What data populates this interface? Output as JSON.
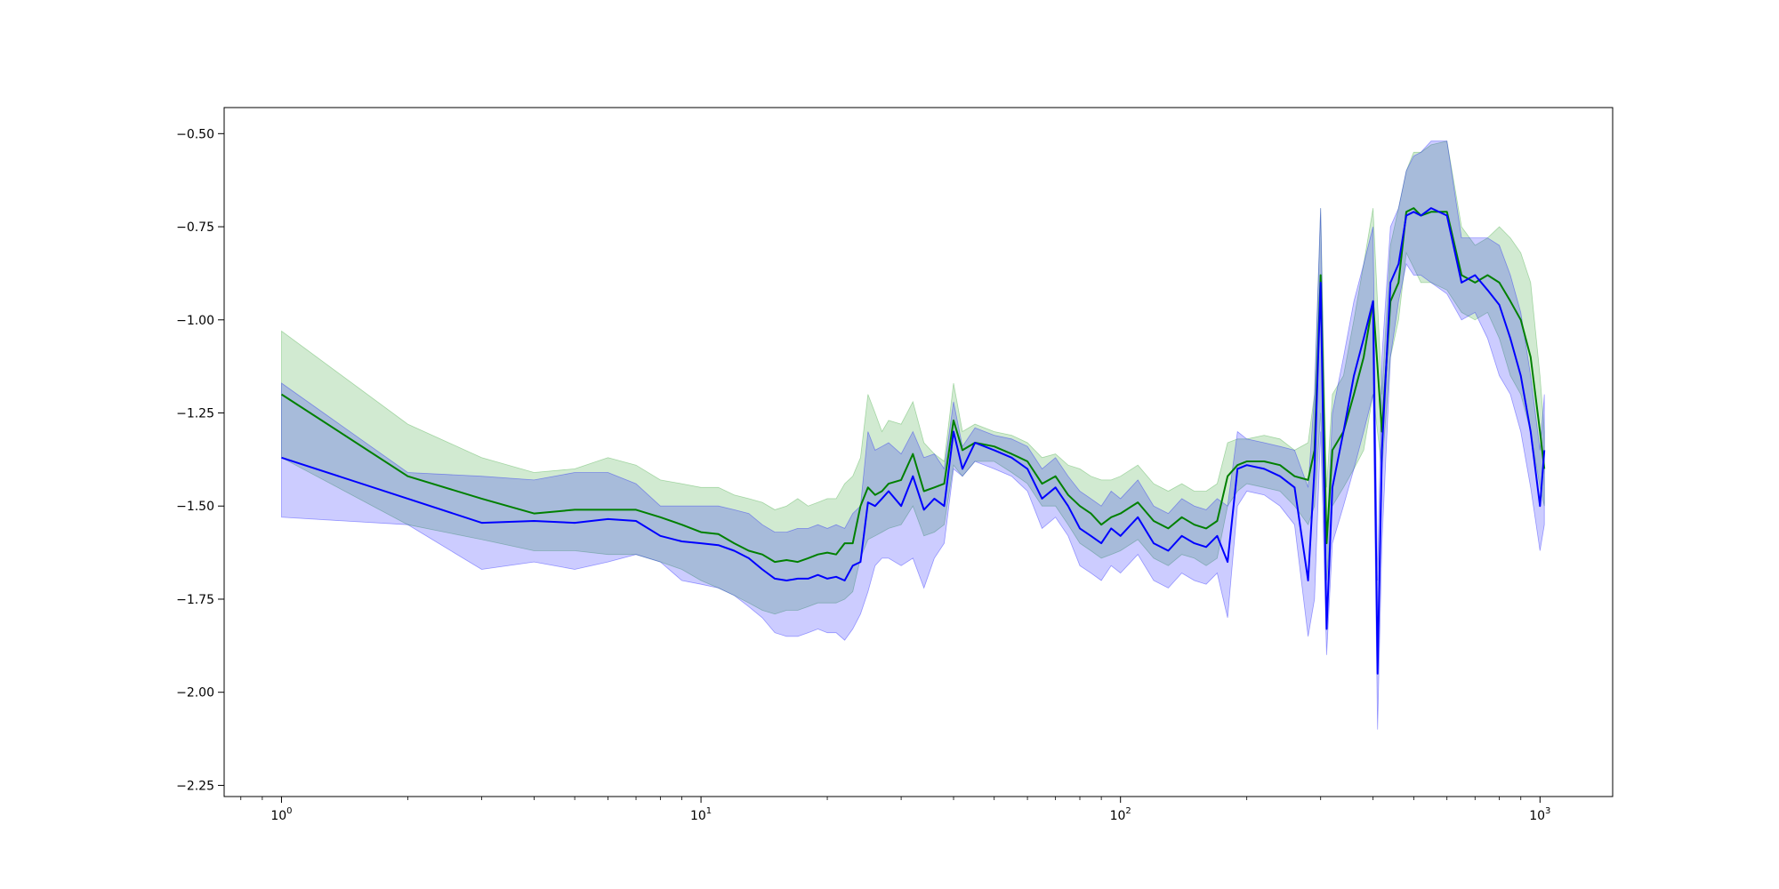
{
  "chart_data": {
    "type": "line",
    "title": "",
    "xlabel": "",
    "ylabel": "",
    "xscale": "log",
    "xlim": [
      0.73,
      1490
    ],
    "ylim": [
      -2.28,
      -0.43
    ],
    "grid": false,
    "legend": "none",
    "x_ticks": [
      {
        "value": 1,
        "base": "10",
        "exp": "0"
      },
      {
        "value": 10,
        "base": "10",
        "exp": "1"
      },
      {
        "value": 100,
        "base": "10",
        "exp": "2"
      },
      {
        "value": 1000,
        "base": "10",
        "exp": "3"
      }
    ],
    "y_ticks": [
      {
        "value": -0.5,
        "label": "−0.50"
      },
      {
        "value": -0.75,
        "label": "−0.75"
      },
      {
        "value": -1.0,
        "label": "−1.00"
      },
      {
        "value": -1.25,
        "label": "−1.25"
      },
      {
        "value": -1.5,
        "label": "−1.50"
      },
      {
        "value": -1.75,
        "label": "−1.75"
      },
      {
        "value": -2.0,
        "label": "−2.00"
      },
      {
        "value": -2.25,
        "label": "−2.25"
      }
    ],
    "series": [
      {
        "color": "#008000",
        "band_color": "#2ca02c",
        "band_opacity": 0.22,
        "x": [
          1,
          2,
          3,
          4,
          5,
          6,
          7,
          8,
          9,
          10,
          11,
          12,
          13,
          14,
          15,
          16,
          17,
          18,
          19,
          20,
          21,
          22,
          23,
          24,
          25,
          26,
          27,
          28,
          30,
          32,
          34,
          36,
          38,
          40,
          42,
          45,
          50,
          55,
          60,
          65,
          70,
          75,
          80,
          85,
          90,
          95,
          100,
          110,
          120,
          130,
          140,
          150,
          160,
          170,
          180,
          190,
          200,
          220,
          240,
          260,
          280,
          290,
          300,
          310,
          320,
          340,
          360,
          380,
          400,
          420,
          440,
          460,
          480,
          500,
          520,
          550,
          600,
          650,
          700,
          750,
          800,
          850,
          900,
          950,
          1000,
          1024
        ],
        "y": [
          -1.2,
          -1.42,
          -1.48,
          -1.52,
          -1.51,
          -1.51,
          -1.51,
          -1.53,
          -1.55,
          -1.57,
          -1.575,
          -1.6,
          -1.62,
          -1.63,
          -1.65,
          -1.645,
          -1.65,
          -1.64,
          -1.63,
          -1.625,
          -1.63,
          -1.6,
          -1.6,
          -1.5,
          -1.45,
          -1.47,
          -1.46,
          -1.44,
          -1.43,
          -1.36,
          -1.46,
          -1.45,
          -1.44,
          -1.27,
          -1.35,
          -1.33,
          -1.34,
          -1.36,
          -1.38,
          -1.44,
          -1.42,
          -1.47,
          -1.5,
          -1.52,
          -1.55,
          -1.53,
          -1.52,
          -1.49,
          -1.54,
          -1.56,
          -1.53,
          -1.55,
          -1.56,
          -1.54,
          -1.42,
          -1.39,
          -1.38,
          -1.38,
          -1.39,
          -1.42,
          -1.43,
          -1.35,
          -0.88,
          -1.6,
          -1.35,
          -1.3,
          -1.2,
          -1.1,
          -0.95,
          -1.3,
          -0.95,
          -0.9,
          -0.71,
          -0.7,
          -0.72,
          -0.71,
          -0.71,
          -0.88,
          -0.9,
          -0.88,
          -0.9,
          -0.95,
          -1.0,
          -1.1,
          -1.3,
          -1.4
        ],
        "lower": [
          -1.37,
          -1.55,
          -1.59,
          -1.62,
          -1.62,
          -1.63,
          -1.63,
          -1.65,
          -1.67,
          -1.7,
          -1.72,
          -1.74,
          -1.76,
          -1.78,
          -1.79,
          -1.78,
          -1.78,
          -1.77,
          -1.76,
          -1.76,
          -1.76,
          -1.75,
          -1.73,
          -1.64,
          -1.59,
          -1.58,
          -1.57,
          -1.56,
          -1.55,
          -1.5,
          -1.58,
          -1.57,
          -1.55,
          -1.39,
          -1.42,
          -1.38,
          -1.38,
          -1.41,
          -1.44,
          -1.5,
          -1.5,
          -1.55,
          -1.6,
          -1.62,
          -1.64,
          -1.63,
          -1.62,
          -1.59,
          -1.64,
          -1.66,
          -1.63,
          -1.64,
          -1.66,
          -1.64,
          -1.5,
          -1.46,
          -1.44,
          -1.45,
          -1.46,
          -1.5,
          -1.55,
          -1.5,
          -1.25,
          -1.7,
          -1.5,
          -1.45,
          -1.4,
          -1.35,
          -1.2,
          -1.4,
          -1.1,
          -1.0,
          -0.82,
          -0.86,
          -0.9,
          -0.9,
          -0.92,
          -0.98,
          -1.0,
          -0.98,
          -1.05,
          -1.15,
          -1.2,
          -1.3,
          -1.45,
          -1.5
        ],
        "upper": [
          -1.03,
          -1.28,
          -1.37,
          -1.41,
          -1.4,
          -1.37,
          -1.39,
          -1.43,
          -1.44,
          -1.45,
          -1.45,
          -1.47,
          -1.48,
          -1.49,
          -1.51,
          -1.5,
          -1.48,
          -1.5,
          -1.49,
          -1.48,
          -1.48,
          -1.44,
          -1.42,
          -1.37,
          -1.2,
          -1.25,
          -1.3,
          -1.27,
          -1.28,
          -1.22,
          -1.33,
          -1.36,
          -1.38,
          -1.17,
          -1.3,
          -1.28,
          -1.3,
          -1.31,
          -1.33,
          -1.37,
          -1.36,
          -1.39,
          -1.4,
          -1.42,
          -1.43,
          -1.43,
          -1.42,
          -1.39,
          -1.44,
          -1.46,
          -1.44,
          -1.46,
          -1.46,
          -1.44,
          -1.33,
          -1.32,
          -1.32,
          -1.31,
          -1.32,
          -1.35,
          -1.33,
          -1.2,
          -0.7,
          -1.45,
          -1.2,
          -1.15,
          -1.0,
          -0.85,
          -0.7,
          -1.2,
          -0.8,
          -0.7,
          -0.6,
          -0.55,
          -0.55,
          -0.53,
          -0.52,
          -0.75,
          -0.8,
          -0.78,
          -0.75,
          -0.78,
          -0.82,
          -0.9,
          -1.15,
          -1.3
        ]
      },
      {
        "color": "#0000ff",
        "band_color": "#0000ff",
        "band_opacity": 0.2,
        "x": [
          1,
          2,
          3,
          4,
          5,
          6,
          7,
          8,
          9,
          10,
          11,
          12,
          13,
          14,
          15,
          16,
          17,
          18,
          19,
          20,
          21,
          22,
          23,
          24,
          25,
          26,
          27,
          28,
          30,
          32,
          34,
          36,
          38,
          40,
          42,
          45,
          50,
          55,
          60,
          65,
          70,
          75,
          80,
          85,
          90,
          95,
          100,
          110,
          120,
          130,
          140,
          150,
          160,
          170,
          180,
          190,
          200,
          220,
          240,
          260,
          280,
          290,
          300,
          310,
          320,
          340,
          360,
          380,
          400,
          410,
          420,
          440,
          460,
          480,
          500,
          520,
          550,
          600,
          650,
          700,
          750,
          800,
          850,
          900,
          950,
          1000,
          1024
        ],
        "y": [
          -1.37,
          -1.48,
          -1.545,
          -1.54,
          -1.545,
          -1.535,
          -1.54,
          -1.58,
          -1.595,
          -1.6,
          -1.605,
          -1.62,
          -1.64,
          -1.67,
          -1.695,
          -1.7,
          -1.695,
          -1.695,
          -1.685,
          -1.695,
          -1.69,
          -1.7,
          -1.66,
          -1.65,
          -1.49,
          -1.5,
          -1.48,
          -1.46,
          -1.5,
          -1.42,
          -1.51,
          -1.48,
          -1.5,
          -1.3,
          -1.4,
          -1.33,
          -1.35,
          -1.37,
          -1.4,
          -1.48,
          -1.45,
          -1.5,
          -1.56,
          -1.58,
          -1.6,
          -1.56,
          -1.58,
          -1.53,
          -1.6,
          -1.62,
          -1.58,
          -1.6,
          -1.61,
          -1.58,
          -1.65,
          -1.4,
          -1.39,
          -1.4,
          -1.42,
          -1.45,
          -1.7,
          -1.4,
          -0.9,
          -1.83,
          -1.45,
          -1.3,
          -1.15,
          -1.05,
          -0.95,
          -1.95,
          -1.35,
          -0.9,
          -0.85,
          -0.72,
          -0.71,
          -0.72,
          -0.7,
          -0.72,
          -0.9,
          -0.88,
          -0.92,
          -0.96,
          -1.05,
          -1.15,
          -1.3,
          -1.5,
          -1.35
        ],
        "lower": [
          -1.53,
          -1.55,
          -1.67,
          -1.65,
          -1.67,
          -1.65,
          -1.63,
          -1.65,
          -1.7,
          -1.71,
          -1.72,
          -1.74,
          -1.77,
          -1.8,
          -1.84,
          -1.85,
          -1.85,
          -1.84,
          -1.83,
          -1.84,
          -1.84,
          -1.86,
          -1.83,
          -1.79,
          -1.73,
          -1.66,
          -1.64,
          -1.64,
          -1.66,
          -1.64,
          -1.72,
          -1.64,
          -1.6,
          -1.4,
          -1.42,
          -1.38,
          -1.4,
          -1.42,
          -1.46,
          -1.56,
          -1.53,
          -1.58,
          -1.66,
          -1.68,
          -1.7,
          -1.66,
          -1.68,
          -1.63,
          -1.7,
          -1.72,
          -1.68,
          -1.7,
          -1.71,
          -1.68,
          -1.8,
          -1.5,
          -1.46,
          -1.47,
          -1.5,
          -1.55,
          -1.85,
          -1.75,
          -1.3,
          -1.9,
          -1.6,
          -1.5,
          -1.4,
          -1.3,
          -1.2,
          -2.1,
          -1.6,
          -1.1,
          -0.95,
          -0.85,
          -0.88,
          -0.88,
          -0.9,
          -0.93,
          -1.0,
          -0.98,
          -1.05,
          -1.15,
          -1.2,
          -1.3,
          -1.45,
          -1.62,
          -1.55
        ],
        "upper": [
          -1.17,
          -1.41,
          -1.42,
          -1.43,
          -1.41,
          -1.41,
          -1.44,
          -1.5,
          -1.5,
          -1.5,
          -1.5,
          -1.51,
          -1.52,
          -1.55,
          -1.57,
          -1.57,
          -1.56,
          -1.56,
          -1.55,
          -1.56,
          -1.55,
          -1.56,
          -1.52,
          -1.5,
          -1.3,
          -1.35,
          -1.34,
          -1.33,
          -1.36,
          -1.3,
          -1.37,
          -1.36,
          -1.4,
          -1.22,
          -1.34,
          -1.29,
          -1.31,
          -1.32,
          -1.34,
          -1.4,
          -1.37,
          -1.42,
          -1.46,
          -1.48,
          -1.5,
          -1.46,
          -1.48,
          -1.43,
          -1.5,
          -1.52,
          -1.48,
          -1.5,
          -1.51,
          -1.48,
          -1.5,
          -1.3,
          -1.32,
          -1.33,
          -1.34,
          -1.35,
          -1.45,
          -1.2,
          -0.7,
          -1.6,
          -1.25,
          -1.1,
          -0.95,
          -0.85,
          -0.75,
          -1.7,
          -1.1,
          -0.75,
          -0.7,
          -0.6,
          -0.56,
          -0.55,
          -0.52,
          -0.52,
          -0.78,
          -0.78,
          -0.78,
          -0.8,
          -0.88,
          -0.98,
          -1.15,
          -1.35,
          -1.2
        ]
      }
    ]
  }
}
